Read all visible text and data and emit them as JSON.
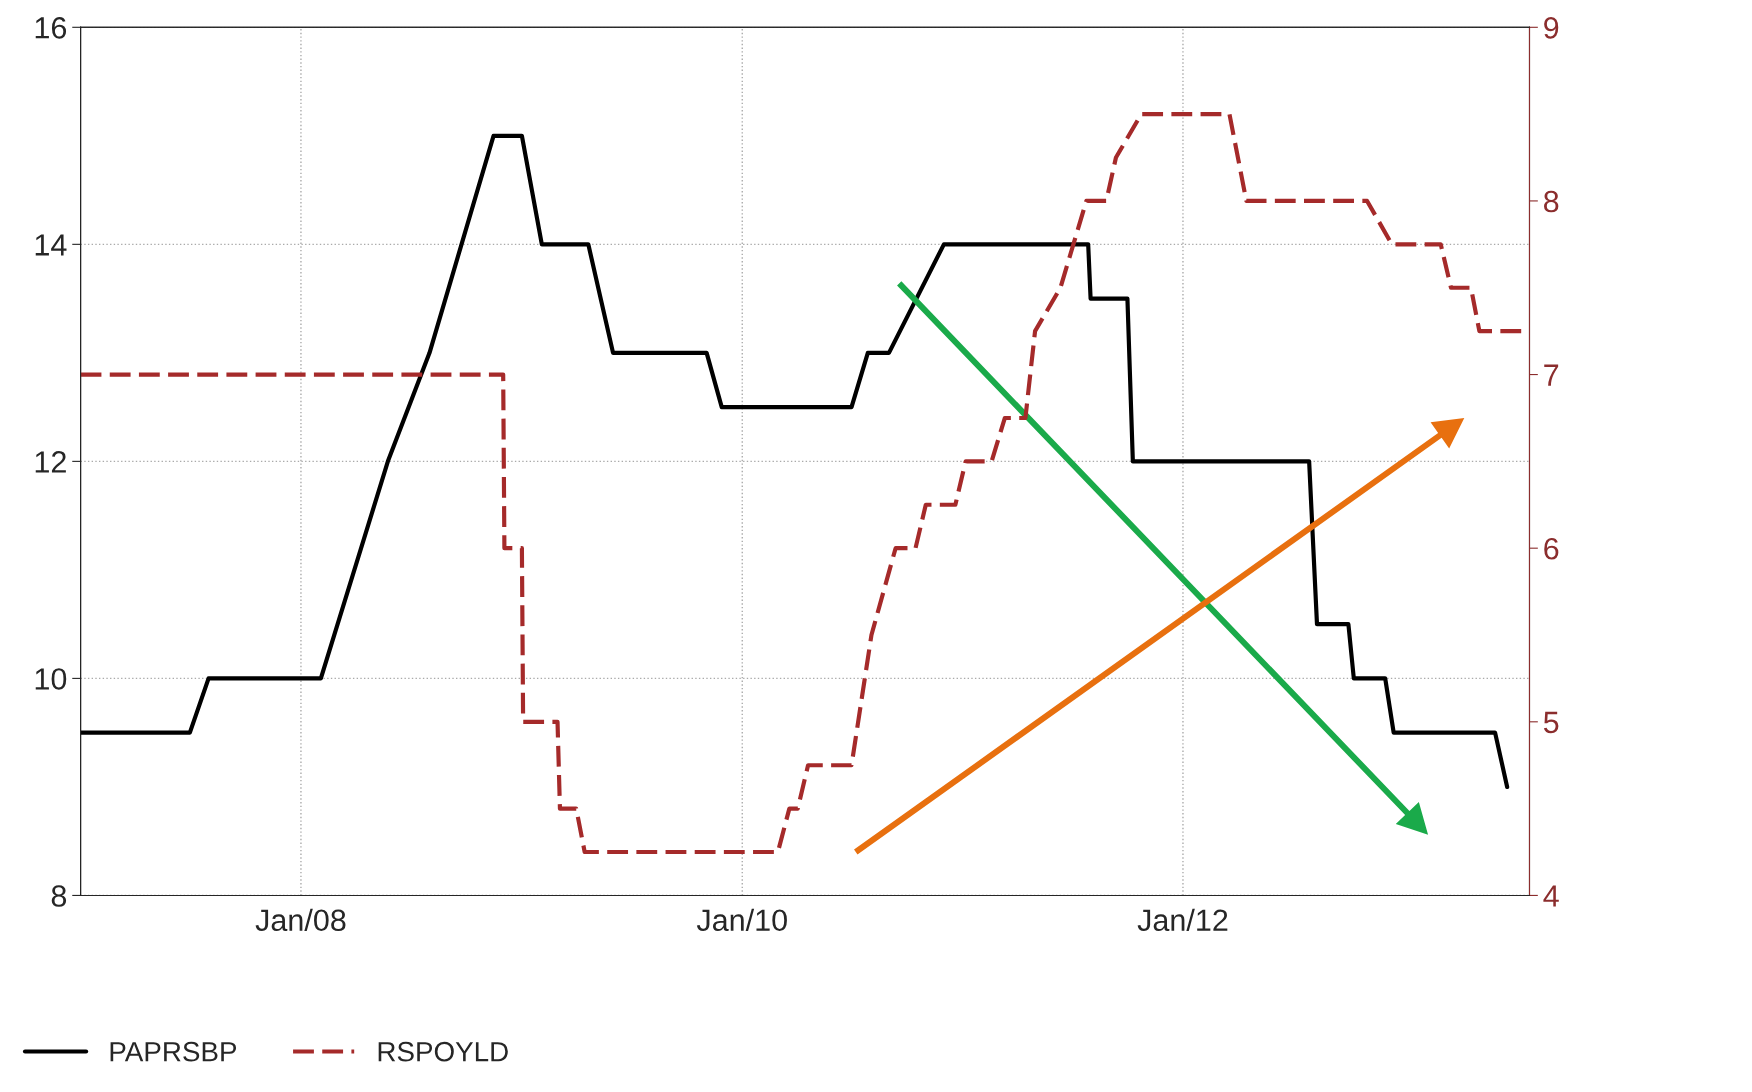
{
  "chart_data": {
    "type": "line",
    "x": [
      "2007-01-01",
      "2007-07-01",
      "2007-08-01",
      "2008-02-03",
      "2008-05-24",
      "2008-08-01",
      "2008-11-15",
      "2009-01-01",
      "2009-02-03",
      "2009-04-21",
      "2009-06-01",
      "2009-11-03",
      "2009-11-28",
      "2010-07-01",
      "2010-07-28",
      "2010-09-01",
      "2010-12-01",
      "2011-07-28",
      "2011-08-01",
      "2011-10-01",
      "2011-10-10",
      "2012-07-28",
      "2012-08-10",
      "2012-10-01",
      "2012-10-10",
      "2012-12-01",
      "2012-12-15",
      "2013-06-01",
      "2013-06-21"
    ],
    "series": [
      {
        "name": "PAPRSBP",
        "color": "#000000",
        "line_style": "solid",
        "values": [
          9.5,
          9.5,
          10,
          10,
          12,
          13,
          15,
          15,
          14,
          14,
          13,
          13,
          12.5,
          12.5,
          13,
          13,
          14,
          14,
          13.5,
          13.5,
          12,
          12,
          10.5,
          10.5,
          10,
          10,
          9.5,
          9.5,
          9
        ]
      },
      {
        "name": "RSPOYLD",
        "color": "#a52a2a",
        "line_style": "dashed",
        "axis": "y2",
        "x": [
          "2007-01-01",
          "2008-12-01",
          "2008-12-03",
          "2009-01-01",
          "2009-01-03",
          "2009-03-01",
          "2009-03-05",
          "2009-04-01",
          "2009-04-15",
          "2010-03-01",
          "2010-03-20",
          "2010-04-03",
          "2010-04-20",
          "2010-07-01",
          "2010-08-03",
          "2010-09-12",
          "2010-10-15",
          "2010-11-01",
          "2010-12-20",
          "2011-01-06",
          "2011-02-18",
          "2011-03-12",
          "2011-04-15",
          "2011-05-01",
          "2011-06-12",
          "2011-07-25",
          "2011-08-27",
          "2011-09-12",
          "2011-10-24",
          "2012-03-18",
          "2012-04-15",
          "2012-11-01",
          "2012-12-12",
          "2013-03-03",
          "2013-03-20",
          "2013-04-22",
          "2013-05-06",
          "2013-07-27"
        ],
        "values": [
          7,
          7,
          6,
          6,
          5,
          5,
          4.5,
          4.5,
          4.25,
          4.25,
          4.5,
          4.5,
          4.75,
          4.75,
          5.5,
          6,
          6,
          6.25,
          6.25,
          6.5,
          6.5,
          6.75,
          6.75,
          7.25,
          7.5,
          8,
          8,
          8.25,
          8.5,
          8.5,
          8,
          8,
          7.75,
          7.75,
          7.5,
          7.5,
          7.25,
          7.25
        ]
      }
    ],
    "xlim": [
      "2007-01-01",
      "2013-07-28"
    ],
    "xticks": [
      {
        "value": "2008-01-01",
        "label": "Jan/08"
      },
      {
        "value": "2010-01-01",
        "label": "Jan/10"
      },
      {
        "value": "2012-01-01",
        "label": "Jan/12"
      }
    ],
    "ylim": [
      8,
      16
    ],
    "yticks": [
      8,
      10,
      12,
      14,
      16
    ],
    "y2lim": [
      4,
      9
    ],
    "y2ticks": [
      4,
      5,
      6,
      7,
      8,
      9
    ],
    "grid": true,
    "legend": "bottom left"
  }
}
